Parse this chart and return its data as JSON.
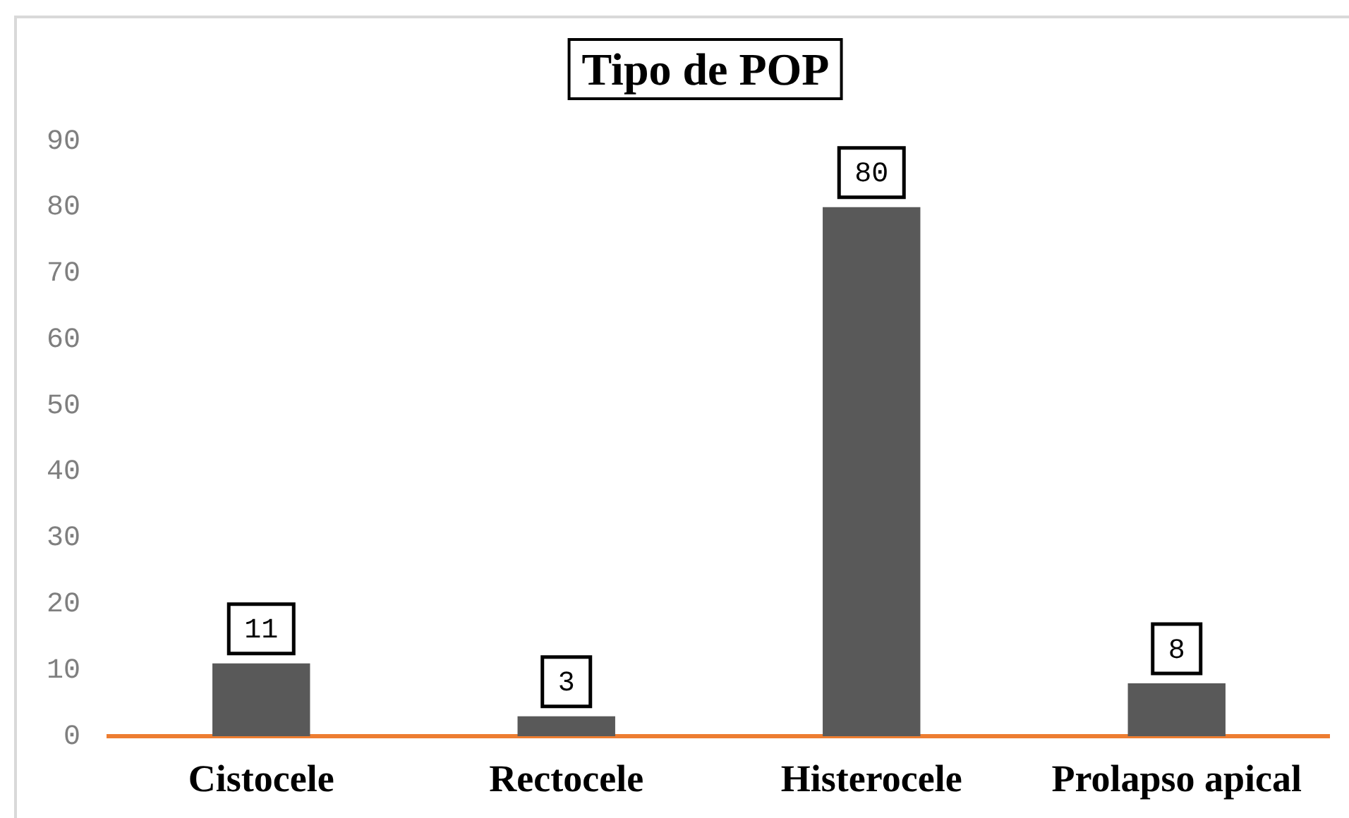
{
  "chart_data": {
    "type": "bar",
    "title": "Tipo de POP",
    "categories": [
      "Cistocele",
      "Rectocele",
      "Histerocele",
      "Prolapso apical"
    ],
    "values": [
      11,
      3,
      80,
      8
    ],
    "color": "#595959",
    "ylim": [
      0,
      90
    ],
    "yticks": [
      0,
      10,
      20,
      30,
      40,
      50,
      60,
      70,
      80,
      90
    ],
    "data_labels": true
  }
}
